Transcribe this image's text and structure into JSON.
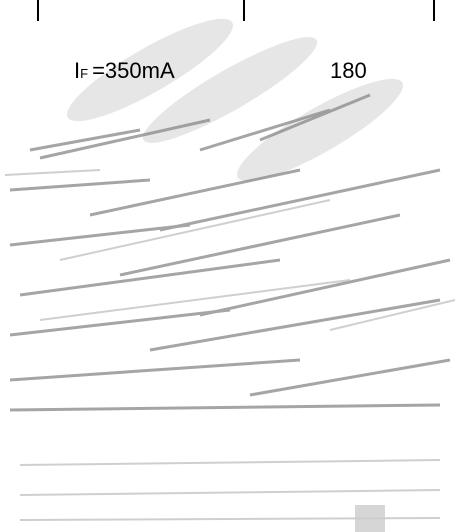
{
  "table": {
    "rows": [
      [
        {
          "symbol": "I",
          "subscript": "F",
          "condition": "=350mA"
        },
        "180"
      ]
    ]
  }
}
